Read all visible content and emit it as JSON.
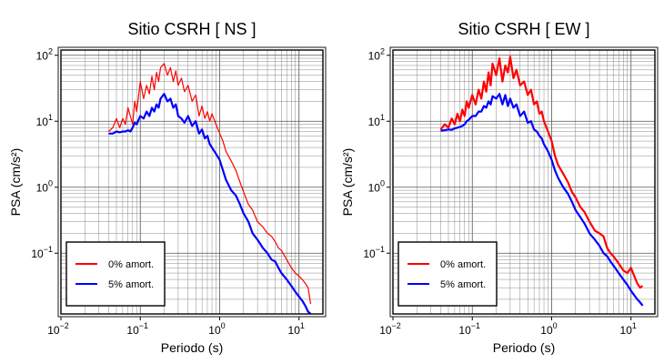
{
  "chart_data": [
    {
      "type": "line",
      "title": "Sitio CSRH [ NS ]",
      "xlabel": "Periodo (s)",
      "ylabel": "PSA (cm/s²)",
      "xscale": "log",
      "yscale": "log",
      "xlim": [
        0.01,
        20
      ],
      "ylim": [
        0.012,
        120
      ],
      "grid": true,
      "legend_position": "bottom-left",
      "x_ticks": [
        {
          "value": 0.01,
          "base": "10",
          "exp": "−2"
        },
        {
          "value": 0.1,
          "base": "10",
          "exp": "−1"
        },
        {
          "value": 1,
          "base": "10",
          "exp": "0"
        },
        {
          "value": 10,
          "base": "10",
          "exp": "1"
        }
      ],
      "y_ticks": [
        {
          "value": 0.1,
          "base": "10",
          "exp": "−1"
        },
        {
          "value": 1,
          "base": "10",
          "exp": "0"
        },
        {
          "value": 10,
          "base": "10",
          "exp": "1"
        },
        {
          "value": 100,
          "base": "10",
          "exp": "2"
        }
      ],
      "series": [
        {
          "name": "0% amort.",
          "color": "#ff0000",
          "width": 1.2,
          "x": [
            0.04,
            0.045,
            0.05,
            0.055,
            0.06,
            0.065,
            0.07,
            0.075,
            0.08,
            0.085,
            0.09,
            0.1,
            0.11,
            0.12,
            0.13,
            0.14,
            0.15,
            0.16,
            0.17,
            0.18,
            0.2,
            0.22,
            0.24,
            0.26,
            0.28,
            0.3,
            0.33,
            0.36,
            0.4,
            0.45,
            0.5,
            0.55,
            0.6,
            0.65,
            0.7,
            0.75,
            0.8,
            0.9,
            1.0,
            1.1,
            1.2,
            1.4,
            1.6,
            1.8,
            2.0,
            2.3,
            2.6,
            3.0,
            3.5,
            4.0,
            4.5,
            5.0,
            5.5,
            6.0,
            7.0,
            8.0,
            9.0,
            10.0,
            11.0,
            12.0,
            13.0,
            14.0
          ],
          "y": [
            7,
            8,
            11,
            8,
            11,
            9,
            16,
            12,
            9,
            20,
            14,
            40,
            22,
            35,
            26,
            48,
            30,
            55,
            40,
            65,
            75,
            50,
            65,
            40,
            58,
            35,
            45,
            28,
            35,
            20,
            25,
            12,
            17,
            11,
            14,
            10,
            13,
            9,
            6.5,
            5,
            3.5,
            2.5,
            1.8,
            1.2,
            0.85,
            0.55,
            0.45,
            0.3,
            0.25,
            0.2,
            0.18,
            0.15,
            0.12,
            0.11,
            0.08,
            0.06,
            0.05,
            0.045,
            0.04,
            0.035,
            0.03,
            0.017
          ]
        },
        {
          "name": "5% amort.",
          "color": "#0000ff",
          "width": 2.2,
          "x": [
            0.04,
            0.045,
            0.05,
            0.055,
            0.06,
            0.065,
            0.07,
            0.075,
            0.08,
            0.085,
            0.09,
            0.1,
            0.11,
            0.12,
            0.13,
            0.14,
            0.15,
            0.16,
            0.17,
            0.18,
            0.2,
            0.22,
            0.24,
            0.26,
            0.28,
            0.3,
            0.33,
            0.36,
            0.4,
            0.45,
            0.5,
            0.55,
            0.6,
            0.65,
            0.7,
            0.75,
            0.8,
            0.9,
            1.0,
            1.1,
            1.2,
            1.4,
            1.6,
            1.8,
            2.0,
            2.3,
            2.6,
            3.0,
            3.5,
            4.0,
            4.5,
            5.0,
            5.5,
            6.0,
            7.0,
            8.0,
            9.0,
            10.0,
            11.0,
            12.0,
            13.0,
            14.0
          ],
          "y": [
            6.5,
            6.5,
            7,
            6.8,
            7,
            7,
            7.3,
            7,
            8,
            9.5,
            9,
            12,
            11,
            14,
            12,
            16,
            14,
            18,
            16,
            22,
            26,
            20,
            22,
            16,
            18,
            12,
            11,
            9.5,
            12,
            8.5,
            10,
            6.5,
            7.5,
            5.5,
            6,
            4.5,
            4,
            3.2,
            2.6,
            1.8,
            1.3,
            0.9,
            0.75,
            0.55,
            0.4,
            0.3,
            0.2,
            0.16,
            0.12,
            0.1,
            0.08,
            0.075,
            0.06,
            0.05,
            0.04,
            0.032,
            0.026,
            0.022,
            0.019,
            0.016,
            0.013,
            0.012
          ]
        }
      ]
    },
    {
      "type": "line",
      "title": "Sitio CSRH [ EW ]",
      "xlabel": "Periodo (s)",
      "ylabel": "PSA (cm/s²)",
      "xscale": "log",
      "yscale": "log",
      "xlim": [
        0.01,
        20
      ],
      "ylim": [
        0.012,
        120
      ],
      "grid": true,
      "legend_position": "bottom-left",
      "x_ticks": [
        {
          "value": 0.01,
          "base": "10",
          "exp": "−2"
        },
        {
          "value": 0.1,
          "base": "10",
          "exp": "−1"
        },
        {
          "value": 1,
          "base": "10",
          "exp": "0"
        },
        {
          "value": 10,
          "base": "10",
          "exp": "1"
        }
      ],
      "y_ticks": [
        {
          "value": 0.1,
          "base": "10",
          "exp": "−1"
        },
        {
          "value": 1,
          "base": "10",
          "exp": "0"
        },
        {
          "value": 10,
          "base": "10",
          "exp": "1"
        },
        {
          "value": 100,
          "base": "10",
          "exp": "2"
        }
      ],
      "series": [
        {
          "name": "0% amort.",
          "color": "#ff0000",
          "width": 2.2,
          "x": [
            0.04,
            0.045,
            0.05,
            0.055,
            0.06,
            0.065,
            0.07,
            0.075,
            0.08,
            0.085,
            0.09,
            0.1,
            0.11,
            0.12,
            0.13,
            0.14,
            0.15,
            0.16,
            0.17,
            0.18,
            0.2,
            0.22,
            0.24,
            0.26,
            0.28,
            0.3,
            0.33,
            0.36,
            0.4,
            0.45,
            0.5,
            0.55,
            0.6,
            0.65,
            0.7,
            0.75,
            0.8,
            0.9,
            1.0,
            1.1,
            1.2,
            1.4,
            1.6,
            1.8,
            2.0,
            2.3,
            2.6,
            3.0,
            3.5,
            4.0,
            4.5,
            5.0,
            5.5,
            6.0,
            7.0,
            8.0,
            9.0,
            10.0,
            11.0,
            12.0,
            13.0,
            14.0
          ],
          "y": [
            7.5,
            9,
            8,
            11,
            9,
            13,
            10,
            15,
            12,
            20,
            16,
            25,
            18,
            30,
            22,
            40,
            28,
            55,
            35,
            75,
            50,
            90,
            40,
            70,
            55,
            95,
            45,
            60,
            35,
            40,
            25,
            30,
            18,
            20,
            13,
            14,
            10,
            7,
            5,
            3,
            2.2,
            1.6,
            1.2,
            0.85,
            0.7,
            0.5,
            0.42,
            0.3,
            0.22,
            0.2,
            0.18,
            0.12,
            0.1,
            0.09,
            0.07,
            0.055,
            0.05,
            0.06,
            0.045,
            0.035,
            0.03,
            0.032
          ]
        },
        {
          "name": "5% amort.",
          "color": "#0000ff",
          "width": 2.2,
          "x": [
            0.04,
            0.045,
            0.05,
            0.055,
            0.06,
            0.065,
            0.07,
            0.075,
            0.08,
            0.085,
            0.09,
            0.1,
            0.11,
            0.12,
            0.13,
            0.14,
            0.15,
            0.16,
            0.17,
            0.18,
            0.2,
            0.22,
            0.24,
            0.26,
            0.28,
            0.3,
            0.33,
            0.36,
            0.4,
            0.45,
            0.5,
            0.55,
            0.6,
            0.65,
            0.7,
            0.75,
            0.8,
            0.9,
            1.0,
            1.1,
            1.2,
            1.4,
            1.6,
            1.8,
            2.0,
            2.3,
            2.6,
            3.0,
            3.5,
            4.0,
            4.5,
            5.0,
            5.5,
            6.0,
            7.0,
            8.0,
            9.0,
            10.0,
            11.0,
            12.0,
            13.0,
            14.0
          ],
          "y": [
            7.2,
            7.3,
            7.5,
            7.4,
            7.8,
            8,
            8.2,
            8.5,
            9,
            10,
            10.5,
            12,
            12,
            14,
            14,
            17,
            16,
            20,
            18,
            24,
            22,
            26,
            18,
            25,
            17,
            22,
            16,
            18,
            12,
            14,
            9.5,
            10,
            7.5,
            7,
            6,
            5.5,
            4.5,
            3.5,
            2.6,
            1.8,
            1.4,
            1.0,
            0.8,
            0.6,
            0.45,
            0.35,
            0.28,
            0.2,
            0.16,
            0.13,
            0.1,
            0.09,
            0.075,
            0.065,
            0.05,
            0.04,
            0.033,
            0.027,
            0.023,
            0.02,
            0.018,
            0.016
          ]
        }
      ]
    }
  ]
}
